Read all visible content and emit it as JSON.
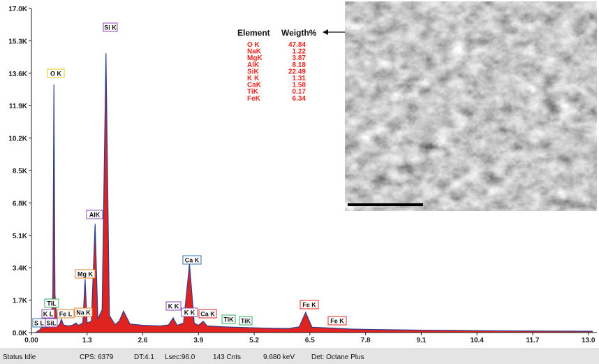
{
  "chart_data": {
    "type": "area",
    "x": [
      0.1,
      0.2,
      0.28,
      0.35,
      0.45,
      0.5,
      0.525,
      0.55,
      0.6,
      0.65,
      0.7,
      0.75,
      0.85,
      0.95,
      1.04,
      1.1,
      1.2,
      1.253,
      1.3,
      1.4,
      1.487,
      1.55,
      1.65,
      1.74,
      1.82,
      1.95,
      2.05,
      2.15,
      2.3,
      2.6,
      3.0,
      3.2,
      3.31,
      3.4,
      3.55,
      3.69,
      3.8,
      3.9,
      4.01,
      4.1,
      4.5,
      5.0,
      5.5,
      6.0,
      6.25,
      6.4,
      6.55,
      7.06,
      7.5,
      8.0,
      9.0,
      10.0,
      11.0,
      12.0,
      13.1
    ],
    "values": [
      0,
      150,
      400,
      250,
      300,
      2000,
      13000,
      2000,
      350,
      400,
      700,
      400,
      350,
      380,
      500,
      380,
      500,
      2800,
      500,
      600,
      5700,
      700,
      1200,
      14650,
      900,
      420,
      600,
      1130,
      450,
      380,
      350,
      400,
      770,
      380,
      500,
      3590,
      500,
      380,
      590,
      350,
      300,
      260,
      230,
      210,
      300,
      1060,
      280,
      230,
      180,
      160,
      130,
      110,
      90,
      80,
      70
    ],
    "color": "#e0231f",
    "line_color": "#2b3d8f",
    "xlim": [
      0,
      13.2
    ],
    "ylim": [
      0,
      17000
    ],
    "xticks": [
      {
        "value": 0,
        "label": "0.00"
      },
      1.3,
      2.6,
      3.9,
      5.2,
      6.5,
      7.8,
      9.1,
      10.4,
      11.7,
      {
        "value": 13,
        "label": "13.0"
      }
    ],
    "yticks": [
      {
        "value": 0,
        "label": "0.0K"
      },
      {
        "value": 1700,
        "label": "1.7K"
      },
      {
        "value": 3400,
        "label": "3.4K"
      },
      {
        "value": 5100,
        "label": "5.1K"
      },
      {
        "value": 6800,
        "label": "6.8K"
      },
      {
        "value": 8500,
        "label": "8.5K"
      },
      {
        "value": 10200,
        "label": "10.2K"
      },
      {
        "value": 11900,
        "label": "11.9K"
      },
      {
        "value": 13600,
        "label": "13.6K"
      },
      {
        "value": 15300,
        "label": "15.3K"
      },
      {
        "value": 17000,
        "label": "17.0K"
      }
    ],
    "annotations": [
      {
        "text": "Si K",
        "color": "#8e44ad"
      },
      {
        "text": "O K",
        "color": "#e6c619"
      },
      {
        "text": "AlK",
        "color": "#8e44ad"
      },
      {
        "text": "Mg K",
        "color": "#e67e22"
      },
      {
        "text": "Ca K",
        "color": "#2e6fb0"
      },
      {
        "text": "K K",
        "color": "#8e44ad"
      },
      {
        "text": "K K",
        "color": "#8e44ad"
      },
      {
        "text": "Ca K",
        "color": "#e8231f"
      },
      {
        "text": "TiK",
        "color": "#27ae60"
      },
      {
        "text": "TiK",
        "color": "#27ae60"
      },
      {
        "text": "Fe K",
        "color": "#e8231f"
      },
      {
        "text": "Fe K",
        "color": "#e8231f"
      },
      {
        "text": "TiL",
        "color": "#27ae60"
      },
      {
        "text": "K L",
        "color": "#8e44ad"
      },
      {
        "text": "Fe L",
        "color": "#e67e22"
      },
      {
        "text": "Na K",
        "color": "#e67e22"
      },
      {
        "text": "S L",
        "color": "#2e6fb0"
      },
      {
        "text": "SiL",
        "color": "#8e44ad"
      }
    ]
  },
  "element_table": {
    "headers": [
      "Element",
      "Weigth%"
    ],
    "rows": [
      [
        "O K",
        47.84
      ],
      [
        "NaK",
        1.22
      ],
      [
        "MgK",
        3.87
      ],
      [
        "AlK",
        8.18
      ],
      [
        "SiK",
        22.49
      ],
      [
        "K K",
        1.31
      ],
      [
        "CaK",
        1.58
      ],
      [
        "TiK",
        0.17
      ],
      [
        "FeK",
        6.34
      ]
    ]
  },
  "status_bar": [
    "Status Idle",
    "CPS: 6379",
    "DT:4.1",
    "Lsec:96.0",
    "143 Cnts",
    "9.680 keV",
    "Det: Octane Plus"
  ]
}
